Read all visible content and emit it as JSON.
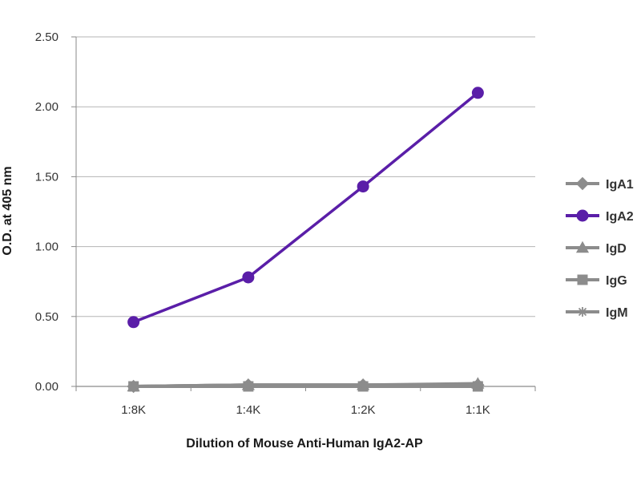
{
  "chart_data": {
    "type": "line",
    "title": "",
    "xlabel": "Dilution of Mouse Anti-Human IgA2-AP",
    "ylabel": "O.D. at 405 nm",
    "categories": [
      "1:8K",
      "1:4K",
      "1:2K",
      "1:1K"
    ],
    "ylim": [
      0,
      2.5
    ],
    "yticks": [
      "0.00",
      "0.50",
      "1.00",
      "1.50",
      "2.00",
      "2.50"
    ],
    "grid": "horizontal",
    "legend_position": "right",
    "series": [
      {
        "name": "IgA1",
        "marker": "diamond",
        "color": "#8c8c8c",
        "values": [
          0.0,
          0.01,
          0.01,
          0.01
        ]
      },
      {
        "name": "IgA2",
        "marker": "circle",
        "color": "#5a1ea8",
        "values": [
          0.46,
          0.78,
          1.43,
          2.1
        ]
      },
      {
        "name": "IgD",
        "marker": "triangle",
        "color": "#8c8c8c",
        "values": [
          0.0,
          0.01,
          0.01,
          0.02
        ]
      },
      {
        "name": "IgG",
        "marker": "square",
        "color": "#8c8c8c",
        "values": [
          0.0,
          0.0,
          0.0,
          0.0
        ]
      },
      {
        "name": "IgM",
        "marker": "star",
        "color": "#8c8c8c",
        "values": [
          0.0,
          0.01,
          0.01,
          0.01
        ]
      }
    ]
  }
}
